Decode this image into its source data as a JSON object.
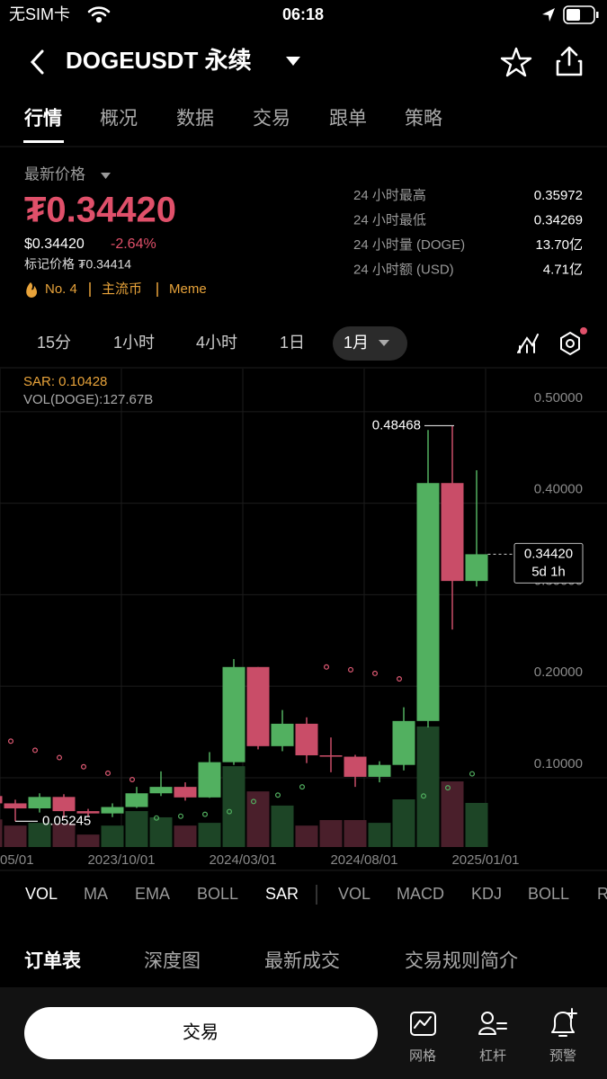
{
  "status_bar": {
    "carrier": "无SIM卡",
    "time": "06:18"
  },
  "header": {
    "title": "DOGEUSDT 永续"
  },
  "tabs": [
    "行情",
    "概况",
    "数据",
    "交易",
    "跟单",
    "策略"
  ],
  "price": {
    "label": "最新价格",
    "last": "₮0.34420",
    "usd": "$0.34420",
    "change": "-2.64%",
    "mark": "标记价格 ₮0.34414",
    "tags": [
      "No. 4",
      "主流币",
      "Meme"
    ]
  },
  "stats": [
    {
      "label": "24 小时最高",
      "value": "0.35972"
    },
    {
      "label": "24 小时最低",
      "value": "0.34269"
    },
    {
      "label": "24 小时量 (DOGE)",
      "value": "13.70亿"
    },
    {
      "label": "24 小时额 (USD)",
      "value": "4.71亿"
    }
  ],
  "intervals": [
    "15分",
    "1小时",
    "4小时",
    "1日",
    "1月"
  ],
  "chart_data": {
    "type": "candlestick",
    "sar_label": "SAR: 0.10428",
    "volume_label": "VOL(DOGE):127.67B",
    "categories": [
      "05/01",
      null,
      null,
      null,
      null,
      "2023/10/01",
      null,
      null,
      null,
      null,
      "2024/03/01",
      null,
      null,
      null,
      null,
      "2024/08/01",
      null,
      null,
      null,
      null,
      "2025/01/01"
    ],
    "open": [
      0.08,
      0.072,
      0.0665,
      0.079,
      0.0635,
      0.061,
      0.068,
      0.083,
      0.09,
      0.0785,
      0.117,
      0.221,
      0.1345,
      0.159,
      0.1245,
      0.123,
      0.101,
      0.114,
      0.162,
      0.422,
      0.315
    ],
    "high": [
      0.083,
      0.076,
      0.083,
      0.082,
      0.066,
      0.072,
      0.09,
      0.107,
      0.095,
      0.128,
      0.2297,
      0.221,
      0.174,
      0.166,
      0.144,
      0.125,
      0.118,
      0.177,
      0.48,
      0.48468,
      0.436
    ],
    "low": [
      0.07,
      0.05245,
      0.062,
      0.056,
      0.058,
      0.057,
      0.067,
      0.08,
      0.075,
      0.078,
      0.114,
      0.131,
      0.129,
      0.116,
      0.106,
      0.09,
      0.095,
      0.108,
      0.155,
      0.262,
      0.309
    ],
    "close": [
      0.072,
      0.0665,
      0.079,
      0.0635,
      0.061,
      0.068,
      0.083,
      0.09,
      0.0785,
      0.117,
      0.221,
      0.1345,
      0.159,
      0.1245,
      0.123,
      0.101,
      0.114,
      0.162,
      0.422,
      0.315,
      0.3442
    ],
    "sar": [
      0.145,
      0.14,
      0.13,
      0.122,
      0.112,
      0.105,
      0.098,
      0.056,
      0.058,
      0.06,
      0.063,
      0.074,
      0.081,
      0.09,
      0.221,
      0.218,
      0.214,
      0.208,
      0.08,
      0.089,
      0.10428
    ],
    "volume": [
      80,
      62,
      70,
      68,
      36,
      62,
      104,
      86,
      62,
      70,
      234,
      161,
      120,
      62,
      78,
      78,
      70,
      138,
      349,
      190,
      127.67
    ],
    "ylim": [
      0.0243,
      0.547
    ],
    "yticks": [
      {
        "value": 0.5,
        "label": "0.50000"
      },
      {
        "value": 0.4,
        "label": "0.40000"
      },
      {
        "value": 0.3,
        "label": "0.30000"
      },
      {
        "value": 0.2,
        "label": "0.20000"
      },
      {
        "value": 0.1,
        "label": "0.10000"
      }
    ],
    "vlim": [
      0,
      1385
    ],
    "last_price_label": "0.34420",
    "countdown": "5d 1h",
    "up_color": "#52b060",
    "down_color": "#c94d68",
    "volume_up_color": "#1d4526",
    "volume_down_color": "#4a1f2b",
    "sar_color": "#e05a74",
    "grid": true
  },
  "indicator_tabs": [
    "VOL",
    "MA",
    "EMA",
    "BOLL",
    "SAR",
    "VOL",
    "MACD",
    "KDJ",
    "BOLL",
    "R"
  ],
  "section_tabs": [
    "订单表",
    "深度图",
    "最新成交",
    "交易规则简介"
  ],
  "footer": {
    "button": "交易",
    "tools": [
      "网格",
      "杠杆",
      "预警"
    ]
  }
}
